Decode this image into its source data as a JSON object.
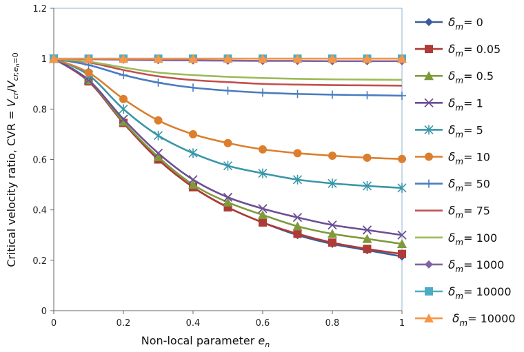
{
  "chart_data": {
    "type": "line",
    "xlabel": {
      "main": "Non-local parameter ",
      "var": "e",
      "sub": "n"
    },
    "ylabel": {
      "main": "Critical velocity ratio, CVR = ",
      "num": "V",
      "num_sub": "cr",
      "den": "V",
      "den_sub": "cr,",
      "den_sub2": "e",
      "den_sub3": "n",
      "den_sub4": "=0"
    },
    "xlim": [
      0,
      1
    ],
    "ylim": [
      0,
      1.2
    ],
    "xticks": [
      "0",
      "0.2",
      "0.4",
      "0.6",
      "0.8",
      "1"
    ],
    "yticks": [
      "0",
      "0.2",
      "0.4",
      "0.6",
      "0.8",
      "1",
      "1.2"
    ],
    "grid": false,
    "legend": "right",
    "legend_symbol": "δ",
    "legend_subscript": "m",
    "x": [
      0,
      0.1,
      0.2,
      0.3,
      0.4,
      0.5,
      0.6,
      0.7,
      0.8,
      0.9,
      1.0
    ],
    "series": [
      {
        "name": "= 0",
        "color": "#3b5c9a",
        "marker": "diamond",
        "values": [
          1,
          0.91,
          0.745,
          0.6,
          0.49,
          0.41,
          0.35,
          0.3,
          0.265,
          0.24,
          0.215
        ]
      },
      {
        "name": "= 0.05",
        "color": "#b03a36",
        "marker": "square",
        "values": [
          1,
          0.91,
          0.745,
          0.6,
          0.49,
          0.41,
          0.35,
          0.305,
          0.27,
          0.245,
          0.225
        ]
      },
      {
        "name": "= 0.5",
        "color": "#7f9a3a",
        "marker": "triangle",
        "values": [
          1,
          0.915,
          0.75,
          0.61,
          0.5,
          0.43,
          0.38,
          0.335,
          0.305,
          0.285,
          0.265
        ]
      },
      {
        "name": "= 1",
        "color": "#6c4f96",
        "marker": "x",
        "values": [
          1,
          0.915,
          0.76,
          0.625,
          0.52,
          0.45,
          0.405,
          0.37,
          0.34,
          0.32,
          0.3
        ]
      },
      {
        "name": "= 5",
        "color": "#3a96a9",
        "marker": "star",
        "values": [
          1,
          0.935,
          0.8,
          0.695,
          0.625,
          0.575,
          0.545,
          0.52,
          0.505,
          0.495,
          0.487
        ]
      },
      {
        "name": "= 10",
        "color": "#db7f2e",
        "marker": "circle",
        "values": [
          1,
          0.945,
          0.84,
          0.755,
          0.7,
          0.665,
          0.64,
          0.625,
          0.615,
          0.607,
          0.602
        ]
      },
      {
        "name": "= 50",
        "color": "#4a7cc0",
        "marker": "plus",
        "values": [
          1,
          0.975,
          0.935,
          0.905,
          0.885,
          0.873,
          0.865,
          0.86,
          0.857,
          0.855,
          0.853
        ]
      },
      {
        "name": "= 75",
        "color": "#c0504d",
        "marker": "none",
        "values": [
          1,
          0.985,
          0.955,
          0.93,
          0.915,
          0.907,
          0.9,
          0.897,
          0.895,
          0.894,
          0.893
        ]
      },
      {
        "name": "= 100",
        "color": "#9bbb59",
        "marker": "none",
        "values": [
          1,
          0.988,
          0.965,
          0.945,
          0.935,
          0.928,
          0.923,
          0.92,
          0.918,
          0.917,
          0.916
        ]
      },
      {
        "name": "= 1000",
        "color": "#8064a2",
        "marker": "diamond",
        "values": [
          1,
          0.998,
          0.996,
          0.994,
          0.993,
          0.992,
          0.991,
          0.991,
          0.99,
          0.99,
          0.99
        ]
      },
      {
        "name": "= 10000",
        "color": "#4bacc6",
        "marker": "square",
        "values": [
          1,
          1,
          1,
          1,
          1,
          1,
          1,
          1,
          1,
          1,
          1
        ]
      },
      {
        "name": "= 10000",
        "color": "#f79646",
        "marker": "triangle",
        "values": [
          1,
          1,
          1,
          1,
          1,
          1,
          1,
          1,
          1,
          1,
          1
        ]
      }
    ]
  }
}
